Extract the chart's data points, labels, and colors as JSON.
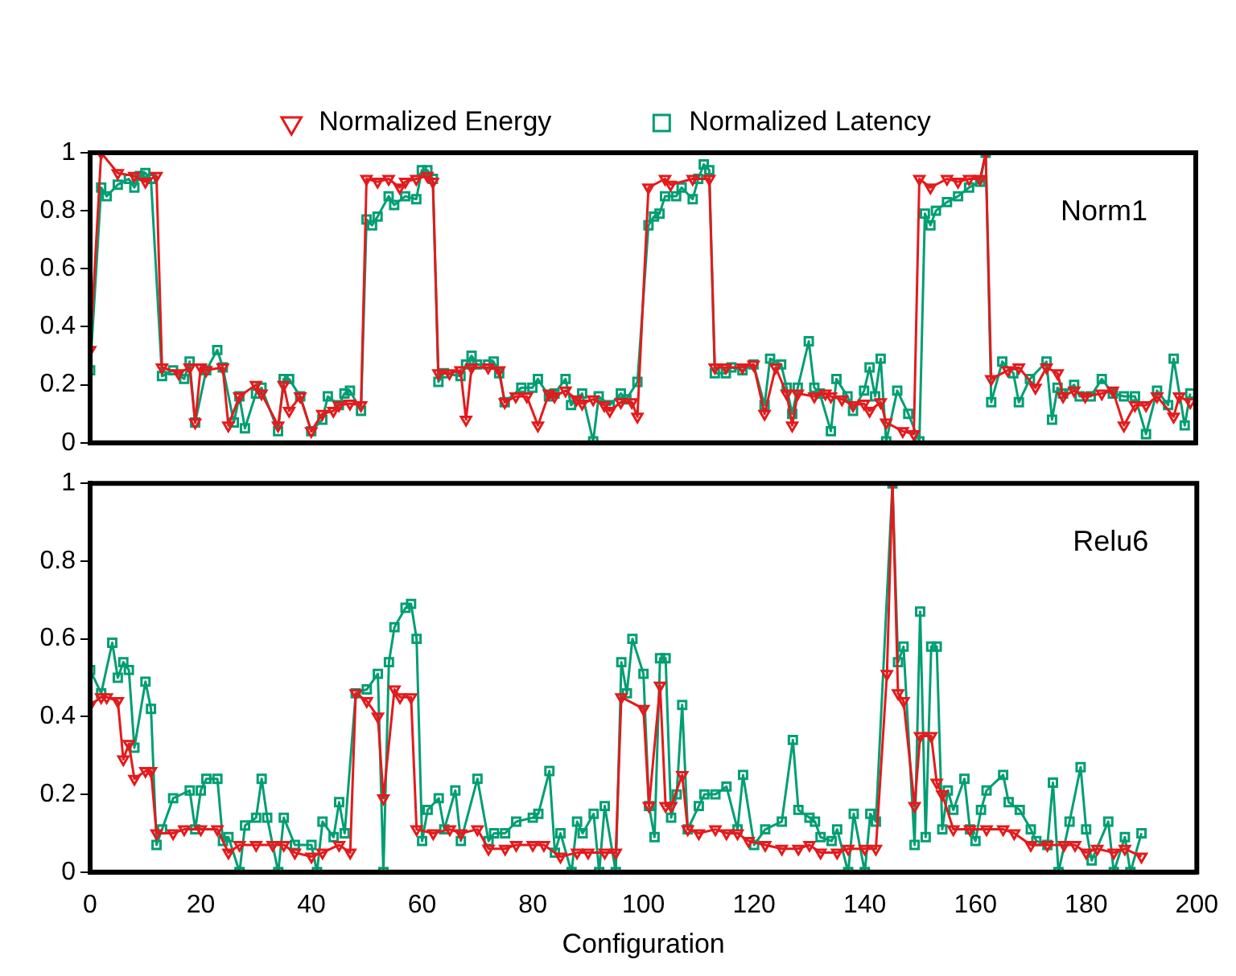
{
  "chart_data": [
    {
      "type": "line",
      "legend": "top",
      "tick_labels": "y",
      "annotations": [
        "Norm1"
      ],
      "xlim": [
        0,
        200
      ],
      "xticks": [
        0,
        20,
        40,
        60,
        80,
        100,
        120,
        140,
        160,
        180,
        200
      ],
      "ylim": [
        0,
        1
      ],
      "yticks": [
        0,
        0.2,
        0.4,
        0.6,
        0.8,
        1
      ],
      "grid": false,
      "line_style": "solid",
      "series": [
        {
          "name": "Normalized Energy",
          "color": "#e41a1c",
          "marker": "triangle",
          "x": [
            0,
            2,
            5,
            8,
            10,
            12,
            13,
            16,
            18,
            19,
            20,
            21,
            24,
            25,
            27,
            30,
            31,
            34,
            35,
            36,
            38,
            40,
            42,
            44,
            45,
            47,
            49,
            50,
            52,
            54,
            56,
            57,
            59,
            61,
            62,
            63,
            65,
            67,
            68,
            69,
            72,
            74,
            75,
            77,
            79,
            81,
            83,
            84,
            86,
            88,
            89,
            91,
            93,
            94,
            96,
            98,
            99,
            101,
            104,
            105,
            109,
            112,
            113,
            115,
            118,
            120,
            122,
            124,
            126,
            127,
            128,
            131,
            133,
            134,
            136,
            138,
            140,
            141,
            143,
            144,
            147,
            149,
            150,
            152,
            155,
            157,
            159,
            161,
            162,
            163,
            166,
            168,
            171,
            173,
            175,
            176,
            178,
            180,
            183,
            185,
            187,
            189,
            191,
            193,
            196,
            197,
            199
          ],
          "values": [
            0.32,
            1.0,
            0.93,
            0.92,
            0.9,
            0.92,
            0.26,
            0.24,
            0.26,
            0.07,
            0.26,
            0.25,
            0.26,
            0.06,
            0.16,
            0.2,
            0.17,
            0.06,
            0.2,
            0.11,
            0.16,
            0.04,
            0.1,
            0.11,
            0.13,
            0.135,
            0.13,
            0.91,
            0.9,
            0.91,
            0.88,
            0.9,
            0.91,
            0.92,
            0.9,
            0.24,
            0.24,
            0.25,
            0.08,
            0.26,
            0.26,
            0.25,
            0.14,
            0.16,
            0.16,
            0.06,
            0.17,
            0.16,
            0.18,
            0.15,
            0.135,
            0.15,
            0.13,
            0.11,
            0.14,
            0.14,
            0.09,
            0.88,
            0.91,
            0.89,
            0.91,
            0.91,
            0.26,
            0.26,
            0.26,
            0.27,
            0.1,
            0.26,
            0.17,
            0.06,
            0.17,
            0.16,
            0.17,
            0.16,
            0.15,
            0.13,
            0.135,
            0.11,
            0.14,
            0.07,
            0.04,
            0.03,
            0.91,
            0.88,
            0.91,
            0.9,
            0.91,
            0.91,
            1.0,
            0.22,
            0.25,
            0.26,
            0.19,
            0.26,
            0.24,
            0.16,
            0.18,
            0.16,
            0.17,
            0.18,
            0.06,
            0.13,
            0.13,
            0.16,
            0.09,
            0.16,
            0.14
          ]
        },
        {
          "name": "Normalized Latency",
          "color": "#009e73",
          "marker": "square",
          "x": [
            0,
            2,
            3,
            5,
            7,
            8,
            9,
            10,
            11,
            13,
            15,
            17,
            18,
            19,
            21,
            23,
            24,
            26,
            27,
            28,
            30,
            31,
            34,
            35,
            36,
            38,
            40,
            42,
            43,
            45,
            46,
            47,
            49,
            50,
            51,
            52,
            54,
            55,
            57,
            59,
            60,
            61,
            62,
            63,
            64,
            67,
            68,
            69,
            70,
            72,
            73,
            74,
            75,
            78,
            80,
            81,
            83,
            84,
            86,
            87,
            89,
            91,
            92,
            94,
            96,
            97,
            99,
            101,
            102,
            103,
            104,
            106,
            107,
            109,
            110,
            111,
            112,
            113,
            115,
            116,
            118,
            120,
            122,
            123,
            125,
            126,
            127,
            128,
            130,
            131,
            132,
            134,
            135,
            137,
            138,
            140,
            141,
            142,
            143,
            144,
            146,
            148,
            150,
            151,
            152,
            153,
            155,
            157,
            159,
            161,
            162,
            163,
            165,
            167,
            168,
            170,
            173,
            174,
            175,
            176,
            178,
            179,
            181,
            183,
            185,
            187,
            189,
            191,
            193,
            195,
            196,
            198,
            199
          ],
          "values": [
            0.25,
            0.88,
            0.85,
            0.89,
            0.91,
            0.88,
            0.92,
            0.93,
            0.91,
            0.23,
            0.25,
            0.22,
            0.28,
            0.07,
            0.25,
            0.32,
            0.26,
            0.07,
            0.16,
            0.05,
            0.17,
            0.19,
            0.04,
            0.22,
            0.22,
            0.16,
            0.04,
            0.08,
            0.16,
            0.13,
            0.17,
            0.18,
            0.11,
            0.77,
            0.75,
            0.78,
            0.85,
            0.82,
            0.85,
            0.84,
            0.94,
            0.94,
            0.91,
            0.21,
            0.24,
            0.23,
            0.27,
            0.3,
            0.27,
            0.27,
            0.28,
            0.24,
            0.14,
            0.19,
            0.19,
            0.22,
            0.16,
            0.17,
            0.22,
            0.13,
            0.17,
            0.005,
            0.16,
            0.13,
            0.17,
            0.15,
            0.21,
            0.75,
            0.78,
            0.79,
            0.85,
            0.85,
            0.88,
            0.84,
            0.91,
            0.96,
            0.94,
            0.24,
            0.24,
            0.26,
            0.25,
            0.27,
            0.13,
            0.29,
            0.27,
            0.19,
            0.1,
            0.19,
            0.35,
            0.19,
            0.17,
            0.04,
            0.22,
            0.16,
            0.11,
            0.18,
            0.26,
            0.16,
            0.29,
            0.005,
            0.18,
            0.1,
            0.005,
            0.79,
            0.75,
            0.8,
            0.83,
            0.85,
            0.88,
            0.9,
            1.0,
            0.14,
            0.28,
            0.24,
            0.14,
            0.22,
            0.28,
            0.08,
            0.19,
            0.17,
            0.2,
            0.16,
            0.16,
            0.22,
            0.17,
            0.16,
            0.16,
            0.03,
            0.18,
            0.13,
            0.29,
            0.06,
            0.17
          ]
        }
      ]
    },
    {
      "type": "line",
      "legend": false,
      "xlabel": "Configuration",
      "annotations": [
        "Relu6"
      ],
      "xlim": [
        0,
        200
      ],
      "xticks": [
        0,
        20,
        40,
        60,
        80,
        100,
        120,
        140,
        160,
        180,
        200
      ],
      "ylim": [
        0,
        1
      ],
      "yticks": [
        0,
        0.2,
        0.4,
        0.6,
        0.8,
        1
      ],
      "grid": false,
      "line_style": "solid",
      "series": [
        {
          "color": "#e41a1c",
          "marker": "triangle",
          "x": [
            0,
            2,
            3,
            5,
            6,
            7,
            8,
            10,
            11,
            12,
            15,
            17,
            20,
            23,
            25,
            27,
            30,
            33,
            35,
            37,
            40,
            42,
            45,
            47,
            48,
            50,
            52,
            53,
            55,
            56,
            58,
            59,
            62,
            65,
            67,
            70,
            72,
            75,
            77,
            80,
            82,
            85,
            88,
            90,
            93,
            95,
            96,
            100,
            101,
            103,
            104,
            105,
            107,
            108,
            110,
            113,
            115,
            117,
            119,
            122,
            125,
            128,
            130,
            132,
            135,
            137,
            140,
            142,
            144,
            145,
            146,
            147,
            149,
            150,
            152,
            153,
            154,
            156,
            159,
            162,
            165,
            167,
            170,
            173,
            176,
            178,
            180,
            182,
            185,
            187,
            190
          ],
          "values": [
            0.43,
            0.45,
            0.45,
            0.44,
            0.29,
            0.33,
            0.24,
            0.26,
            0.26,
            0.1,
            0.1,
            0.11,
            0.11,
            0.11,
            0.05,
            0.07,
            0.07,
            0.07,
            0.07,
            0.05,
            0.04,
            0.05,
            0.07,
            0.05,
            0.46,
            0.44,
            0.4,
            0.19,
            0.47,
            0.45,
            0.45,
            0.11,
            0.1,
            0.11,
            0.1,
            0.11,
            0.06,
            0.06,
            0.07,
            0.07,
            0.07,
            0.04,
            0.05,
            0.05,
            0.05,
            0.05,
            0.45,
            0.42,
            0.17,
            0.48,
            0.17,
            0.17,
            0.25,
            0.11,
            0.1,
            0.11,
            0.1,
            0.1,
            0.08,
            0.07,
            0.06,
            0.06,
            0.07,
            0.05,
            0.05,
            0.06,
            0.06,
            0.06,
            0.51,
            1.0,
            0.46,
            0.44,
            0.17,
            0.35,
            0.35,
            0.23,
            0.2,
            0.11,
            0.11,
            0.11,
            0.11,
            0.1,
            0.07,
            0.07,
            0.07,
            0.07,
            0.05,
            0.06,
            0.05,
            0.06,
            0.04
          ]
        },
        {
          "color": "#009e73",
          "marker": "square",
          "x": [
            0,
            2,
            4,
            5,
            6,
            7,
            8,
            10,
            11,
            12,
            13,
            15,
            18,
            19,
            20,
            21,
            23,
            24,
            25,
            27,
            28,
            30,
            31,
            32,
            34,
            35,
            37,
            40,
            41,
            42,
            44,
            45,
            46,
            48,
            50,
            52,
            53,
            54,
            55,
            57,
            58,
            59,
            60,
            61,
            63,
            64,
            66,
            67,
            70,
            72,
            73,
            75,
            77,
            80,
            81,
            83,
            84,
            85,
            87,
            88,
            89,
            91,
            92,
            93,
            95,
            96,
            97,
            98,
            100,
            101,
            102,
            103,
            104,
            105,
            106,
            107,
            108,
            110,
            111,
            113,
            115,
            117,
            118,
            120,
            122,
            125,
            127,
            128,
            130,
            131,
            132,
            134,
            135,
            137,
            138,
            140,
            141,
            142,
            145,
            146,
            147,
            149,
            150,
            151,
            152,
            153,
            154,
            155,
            156,
            158,
            159,
            160,
            161,
            162,
            165,
            166,
            168,
            170,
            171,
            173,
            174,
            175,
            177,
            179,
            180,
            181,
            184,
            185,
            187,
            188,
            190
          ],
          "values": [
            0.52,
            0.46,
            0.59,
            0.5,
            0.54,
            0.52,
            0.32,
            0.49,
            0.42,
            0.07,
            0.11,
            0.19,
            0.21,
            0.11,
            0.21,
            0.24,
            0.24,
            0.08,
            0.09,
            0.0,
            0.12,
            0.14,
            0.24,
            0.14,
            0.0,
            0.14,
            0.07,
            0.07,
            0.0,
            0.13,
            0.09,
            0.18,
            0.1,
            0.46,
            0.47,
            0.51,
            0.0,
            0.54,
            0.63,
            0.68,
            0.69,
            0.6,
            0.08,
            0.16,
            0.19,
            0.11,
            0.21,
            0.08,
            0.24,
            0.08,
            0.1,
            0.1,
            0.13,
            0.14,
            0.15,
            0.26,
            0.05,
            0.1,
            0.0,
            0.13,
            0.1,
            0.15,
            0.0,
            0.17,
            0.0,
            0.54,
            0.46,
            0.6,
            0.51,
            0.17,
            0.09,
            0.55,
            0.55,
            0.14,
            0.2,
            0.43,
            0.11,
            0.17,
            0.2,
            0.2,
            0.22,
            0.11,
            0.25,
            0.07,
            0.11,
            0.13,
            0.34,
            0.16,
            0.14,
            0.13,
            0.09,
            0.08,
            0.11,
            0.0,
            0.15,
            0.0,
            0.15,
            0.13,
            1.0,
            0.54,
            0.58,
            0.07,
            0.67,
            0.09,
            0.58,
            0.58,
            0.11,
            0.21,
            0.16,
            0.24,
            0.11,
            0.08,
            0.16,
            0.21,
            0.25,
            0.18,
            0.16,
            0.11,
            0.08,
            0.07,
            0.23,
            0.0,
            0.13,
            0.27,
            0.11,
            0.03,
            0.13,
            0.0,
            0.09,
            0.0,
            0.1
          ]
        }
      ]
    }
  ]
}
